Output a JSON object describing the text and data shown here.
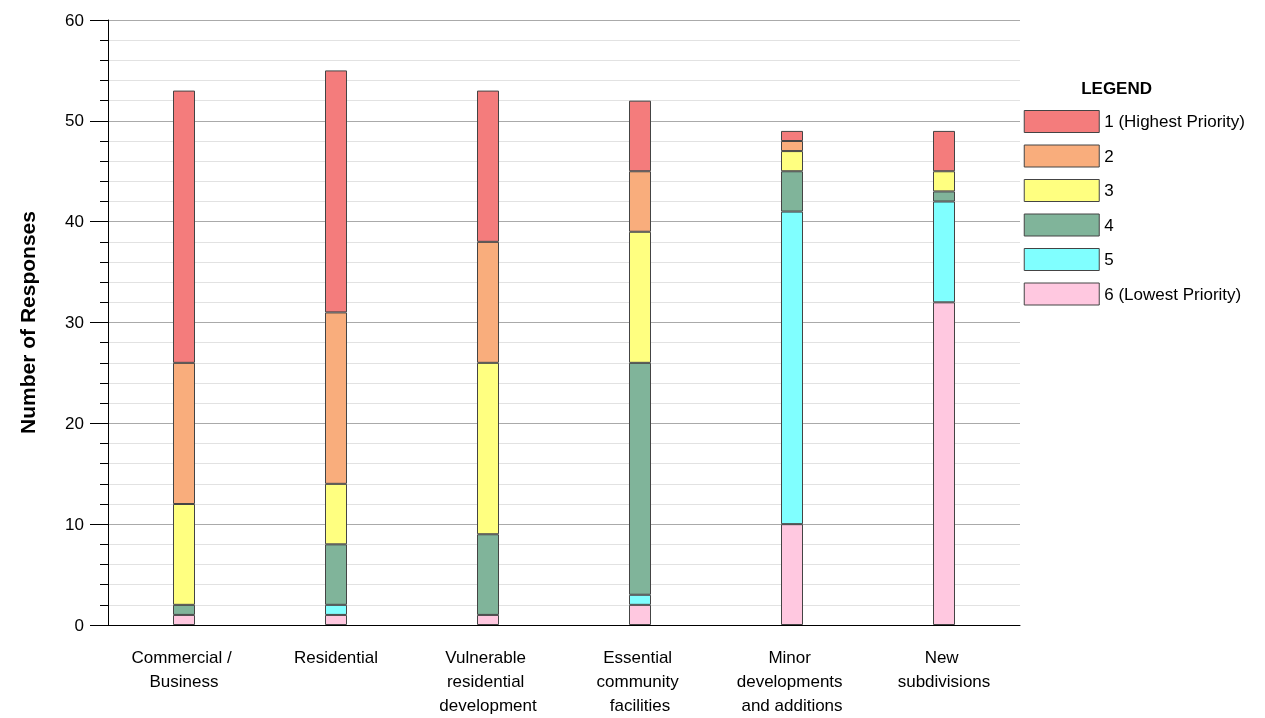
{
  "chart_data": {
    "type": "bar",
    "stacked": true,
    "ylabel": "Number of Responses",
    "legend_title": "LEGEND",
    "legend": "right",
    "grid": true,
    "categories": [
      "Commercial / Business",
      "Residential",
      "Vulnerable residential development",
      "Essential community facilities",
      "Minor developments and additions",
      "New subdivisions"
    ],
    "ylim": [
      0,
      60
    ],
    "yticks": [
      0,
      10,
      20,
      30,
      40,
      50,
      60
    ],
    "series": [
      {
        "name": "6 (Lowest Priority)",
        "color": "#ffc8e0",
        "values": [
          1,
          1,
          1,
          2,
          10,
          32
        ]
      },
      {
        "name": "5",
        "color": "#80ffff",
        "values": [
          0,
          1,
          0,
          1,
          31,
          10
        ]
      },
      {
        "name": "4",
        "color": "#80b49a",
        "values": [
          1,
          6,
          8,
          23,
          4,
          1
        ]
      },
      {
        "name": "3",
        "color": "#ffff80",
        "values": [
          10,
          6,
          17,
          13,
          2,
          2
        ]
      },
      {
        "name": "2",
        "color": "#f9ad7c",
        "values": [
          14,
          17,
          12,
          6,
          1,
          0
        ]
      },
      {
        "name": "1 (Highest Priority)",
        "color": "#f47c7c",
        "values": [
          27,
          24,
          15,
          7,
          1,
          4
        ]
      }
    ]
  }
}
